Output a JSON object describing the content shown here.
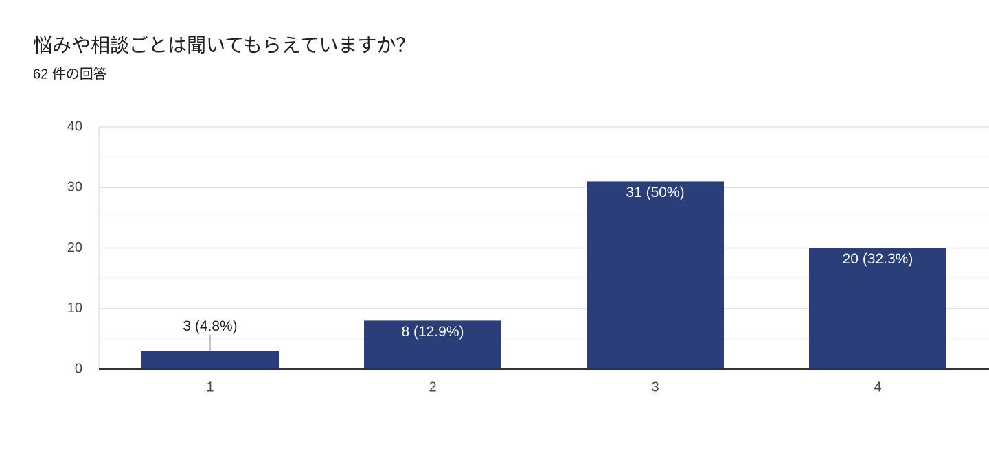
{
  "chart_data": {
    "type": "bar",
    "title": "悩みや相談ごとは聞いてもらえていますか？",
    "subtitle": "62 件の回答",
    "categories": [
      "1",
      "2",
      "3",
      "4"
    ],
    "values": [
      3,
      8,
      31,
      20
    ],
    "value_labels": [
      "3 (4.8%)",
      "8 (12.9%)",
      "31 (50%)",
      "20 (32.3%)"
    ],
    "color": "#2a3f7a",
    "ylim": [
      0,
      40
    ],
    "yticks": [
      0,
      10,
      20,
      30,
      40
    ],
    "grid": true,
    "minor_grid": true
  }
}
